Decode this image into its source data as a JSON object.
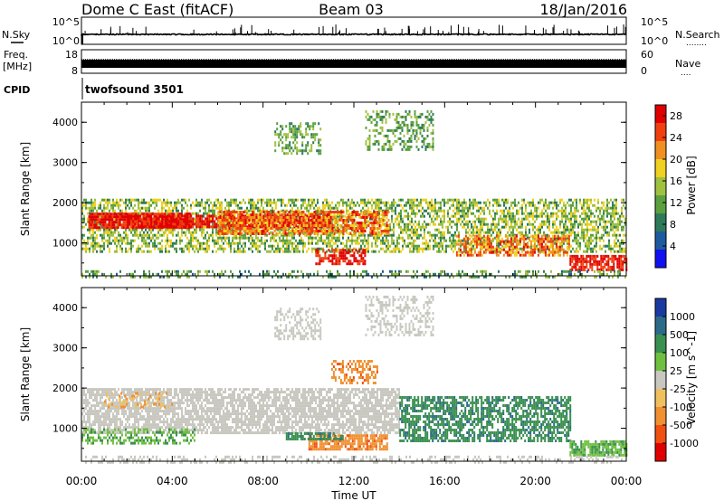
{
  "header": {
    "station": "Dome C East (fitACF)",
    "beam": "Beam 03",
    "date": "18/Jan/2016"
  },
  "strip_panels": {
    "nsky": {
      "label": "N.Sky",
      "ticks": [
        "10^5",
        "10^0"
      ],
      "right_ticks": [
        "10^5",
        "10^0"
      ],
      "right_label": "N.Search",
      "right_dots": "........"
    },
    "freq": {
      "label": "Freq.",
      "unit": "[MHz]",
      "ticks": [
        "18",
        "8"
      ],
      "right_ticks": [
        "60",
        "0"
      ],
      "right_label": "Nave",
      "right_dots": "....",
      "freq_level": 10.5,
      "nave_level": 30
    },
    "cpid": {
      "label": "CPID",
      "value": "twofsound 3501"
    }
  },
  "x_axis": {
    "title": "Time UT",
    "ticks": [
      "00:00",
      "04:00",
      "08:00",
      "12:00",
      "16:00",
      "20:00",
      "00:00"
    ],
    "range_hours": [
      0,
      24
    ]
  },
  "chart_data": [
    {
      "type": "heatmap",
      "name": "power",
      "ylabel": "Slant Range [km]",
      "yticks": [
        "1000",
        "2000",
        "3000",
        "4000"
      ],
      "ylim": [
        180,
        4500
      ],
      "colorbar": {
        "label": "Power [dB]",
        "ticks": [
          "4",
          "8",
          "12",
          "16",
          "20",
          "24",
          "28"
        ],
        "range": [
          0,
          30
        ],
        "colors": [
          "#1010f0",
          "#1e5aa0",
          "#2d7a5a",
          "#5aa040",
          "#a0c040",
          "#f0d020",
          "#f09020",
          "#f04010",
          "#e00000"
        ]
      },
      "scatter_regions": [
        {
          "t": [
            0.0,
            24.0
          ],
          "r": [
            800,
            2100
          ],
          "value_range": [
            8,
            20
          ],
          "density": 0.55
        },
        {
          "t": [
            0.3,
            4.8
          ],
          "r": [
            1400,
            1750
          ],
          "value_range": [
            24,
            30
          ],
          "density": 0.9
        },
        {
          "t": [
            2.0,
            11.0
          ],
          "r": [
            1400,
            1700
          ],
          "value_range": [
            25,
            30
          ],
          "density": 0.8
        },
        {
          "t": [
            6.0,
            13.5
          ],
          "r": [
            1200,
            1800
          ],
          "value_range": [
            18,
            28
          ],
          "density": 0.7
        },
        {
          "t": [
            8.5,
            10.5
          ],
          "r": [
            3200,
            4000
          ],
          "value_range": [
            8,
            16
          ],
          "density": 0.45
        },
        {
          "t": [
            12.5,
            15.5
          ],
          "r": [
            3300,
            4300
          ],
          "value_range": [
            8,
            16
          ],
          "density": 0.4
        },
        {
          "t": [
            10.3,
            12.5
          ],
          "r": [
            450,
            850
          ],
          "value_range": [
            24,
            30
          ],
          "density": 0.7
        },
        {
          "t": [
            16.5,
            21.5
          ],
          "r": [
            700,
            1200
          ],
          "value_range": [
            18,
            28
          ],
          "density": 0.6
        },
        {
          "t": [
            21.5,
            24.0
          ],
          "r": [
            350,
            700
          ],
          "value_range": [
            24,
            30
          ],
          "density": 0.8
        },
        {
          "t": [
            0.0,
            24.0
          ],
          "r": [
            180,
            320
          ],
          "value_range": [
            6,
            16
          ],
          "density": 0.35
        }
      ]
    },
    {
      "type": "heatmap",
      "name": "velocity",
      "ylabel": "Slant Range [km]",
      "yticks": [
        "1000",
        "2000",
        "3000",
        "4000"
      ],
      "ylim": [
        180,
        4500
      ],
      "colorbar": {
        "label": "Velocity [m s^-1]",
        "ticks": [
          "1000",
          "500",
          "100",
          "25",
          "-25",
          "-100",
          "-500",
          "-1000"
        ],
        "colors": [
          "#1a3aa0",
          "#2d6a8a",
          "#3a9050",
          "#70c040",
          "#c8c8c0",
          "#f0c060",
          "#f09030",
          "#f05010",
          "#e00000"
        ]
      },
      "scatter_regions": [
        {
          "t": [
            0.0,
            14.0
          ],
          "r": [
            900,
            2000
          ],
          "value_range": [
            -25,
            25
          ],
          "density": 0.75
        },
        {
          "t": [
            0.0,
            5.0
          ],
          "r": [
            600,
            1000
          ],
          "value_range": [
            25,
            150
          ],
          "density": 0.5
        },
        {
          "t": [
            1.0,
            4.0
          ],
          "r": [
            1500,
            1900
          ],
          "value_range": [
            -150,
            -25
          ],
          "density": 0.3
        },
        {
          "t": [
            10.0,
            13.5
          ],
          "r": [
            450,
            850
          ],
          "value_range": [
            -600,
            -100
          ],
          "density": 0.8
        },
        {
          "t": [
            9.0,
            11.5
          ],
          "r": [
            700,
            900
          ],
          "value_range": [
            100,
            600
          ],
          "density": 0.7
        },
        {
          "t": [
            14.0,
            21.5
          ],
          "r": [
            700,
            1800
          ],
          "value_range": [
            100,
            600
          ],
          "density": 0.65
        },
        {
          "t": [
            21.5,
            24.0
          ],
          "r": [
            350,
            700
          ],
          "value_range": [
            25,
            150
          ],
          "density": 0.8
        },
        {
          "t": [
            8.5,
            10.5
          ],
          "r": [
            3200,
            4000
          ],
          "value_range": [
            -25,
            25
          ],
          "density": 0.4
        },
        {
          "t": [
            12.5,
            15.5
          ],
          "r": [
            3300,
            4300
          ],
          "value_range": [
            -25,
            25
          ],
          "density": 0.4
        },
        {
          "t": [
            11.0,
            13.0
          ],
          "r": [
            2100,
            2700
          ],
          "value_range": [
            -600,
            -100
          ],
          "density": 0.4
        },
        {
          "t": [
            0.0,
            24.0
          ],
          "r": [
            180,
            320
          ],
          "value_range": [
            -25,
            25
          ],
          "density": 0.3
        }
      ]
    }
  ]
}
